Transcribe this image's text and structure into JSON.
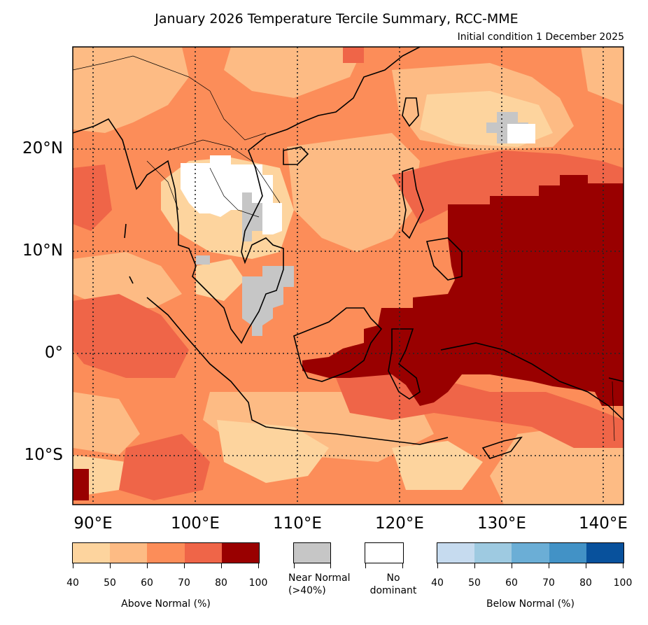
{
  "title": "January 2026 Temperature Tercile Summary, RCC-MME",
  "subtitle": "Initial condition 1 December 2025",
  "lat_labels": [
    "20°N",
    "10°N",
    "0°",
    "10°S"
  ],
  "lon_labels": [
    "90°E",
    "100°E",
    "110°E",
    "120°E",
    "130°E",
    "140°E"
  ],
  "above_normal": {
    "title": "Above Normal (%)",
    "ticks": [
      "40",
      "50",
      "60",
      "70",
      "80",
      "100"
    ],
    "colors": [
      "#fdd49e",
      "#fdbb84",
      "#fc8d59",
      "#ef6548",
      "#990000"
    ]
  },
  "near_normal": {
    "line1": "Near Normal",
    "line2": "(>40%)",
    "color": "#c6c6c6"
  },
  "no_dominant": {
    "line1": "No",
    "line2": "dominant",
    "color": "#ffffff"
  },
  "below_normal": {
    "title": "Below Normal (%)",
    "ticks": [
      "40",
      "50",
      "60",
      "70",
      "80",
      "100"
    ],
    "colors": [
      "#c6dbef",
      "#9ecae1",
      "#6baed6",
      "#4292c6",
      "#08519c"
    ]
  },
  "region_colors": {
    "c40": "#fdd49e",
    "c50": "#fdbb84",
    "c60": "#fc8d59",
    "c70": "#ef6548",
    "c80": "#990000",
    "near": "#c6c6c6",
    "none": "#ffffff"
  }
}
